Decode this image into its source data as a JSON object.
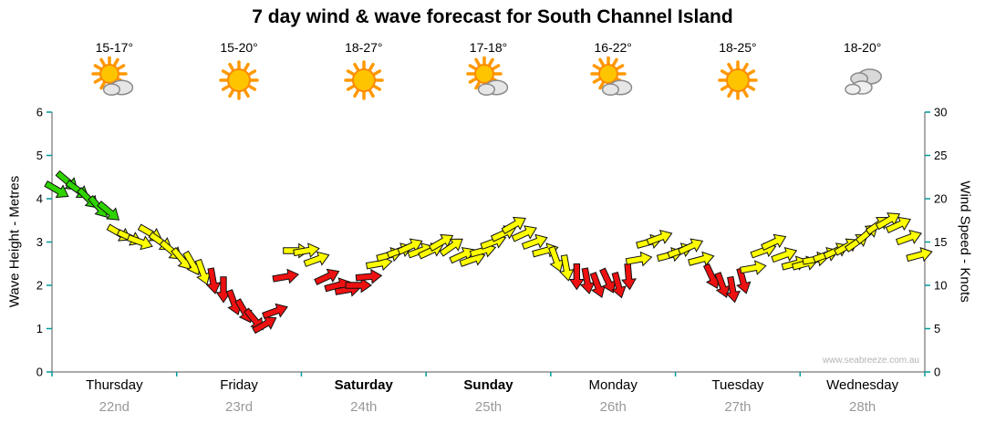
{
  "title": "7 day wind & wave forecast for South Channel Island",
  "watermark": "www.seabreeze.com.au",
  "axes": {
    "left": {
      "label": "Wave Height - Metres",
      "ticks": [
        0,
        1,
        2,
        3,
        4,
        5,
        6
      ],
      "range": [
        0,
        6
      ]
    },
    "right": {
      "label": "Wind Speed - Knots",
      "ticks": [
        0,
        5,
        10,
        15,
        20,
        25,
        30
      ],
      "range": [
        0,
        30
      ]
    }
  },
  "days": [
    {
      "name": "Thursday",
      "date": "22nd",
      "temp_range": "15-17°",
      "icon": "partly-cloudy",
      "weekend": false
    },
    {
      "name": "Friday",
      "date": "23rd",
      "temp_range": "15-20°",
      "icon": "sunny",
      "weekend": false
    },
    {
      "name": "Saturday",
      "date": "24th",
      "temp_range": "18-27°",
      "icon": "sunny",
      "weekend": true
    },
    {
      "name": "Sunday",
      "date": "25th",
      "temp_range": "17-18°",
      "icon": "partly-cloudy",
      "weekend": true
    },
    {
      "name": "Monday",
      "date": "26th",
      "temp_range": "16-22°",
      "icon": "partly-cloudy",
      "weekend": false
    },
    {
      "name": "Tuesday",
      "date": "27th",
      "temp_range": "18-25°",
      "icon": "sunny",
      "weekend": false
    },
    {
      "name": "Wednesday",
      "date": "28th",
      "temp_range": "18-20°",
      "icon": "cloudy",
      "weekend": false
    }
  ],
  "chart_data": {
    "type": "scatter",
    "title": "7 day wind & wave forecast for South Channel Island",
    "categories": [
      "Thursday 22nd",
      "Friday 23rd",
      "Saturday 24th",
      "Sunday 25th",
      "Monday 26th",
      "Tuesday 27th",
      "Wednesday 28th"
    ],
    "ylabel_left": "Wave Height - Metres",
    "ylabel_right": "Wind Speed - Knots",
    "ylim_left": [
      0,
      6
    ],
    "ylim_right": [
      0,
      30
    ],
    "points_per_day": 12,
    "grid": false,
    "legend": "none",
    "colors": {
      "strong": "#2fd400",
      "moderate": "#ffff00",
      "light": "#ee1111"
    },
    "color_thresholds_knots": {
      "strong_min": 18,
      "moderate_min": 11.5
    },
    "series": [
      {
        "name": "Wind Speed (knots, arrows show direction)",
        "unit": "knots",
        "values": [
          21,
          22,
          21,
          20,
          19,
          18.5,
          16,
          15.5,
          15,
          16,
          15,
          14,
          13,
          12.5,
          11.5,
          10.5,
          9.5,
          8,
          7,
          6,
          5.5,
          7,
          11,
          14,
          14,
          13,
          11,
          10,
          9.5,
          10,
          11,
          12.5,
          13.5,
          14,
          14.5,
          14,
          14,
          15,
          14.5,
          13.5,
          13,
          14,
          15,
          16,
          17,
          16,
          15,
          14,
          13,
          12,
          11,
          10.5,
          10,
          10.5,
          10,
          11,
          13,
          15,
          15.5,
          13.5,
          14,
          14.5,
          13,
          11,
          10,
          9.5,
          10.5,
          12,
          14,
          15,
          13.5,
          12.5,
          12.5,
          13,
          13.5,
          14,
          14.5,
          15,
          16,
          17,
          17.5,
          17,
          15.5,
          13.5
        ],
        "directions_deg": [
          120,
          130,
          125,
          135,
          140,
          130,
          120,
          115,
          110,
          120,
          125,
          130,
          140,
          150,
          160,
          170,
          180,
          160,
          150,
          140,
          60,
          70,
          80,
          90,
          80,
          70,
          65,
          75,
          80,
          90,
          85,
          80,
          75,
          70,
          65,
          70,
          65,
          60,
          55,
          65,
          70,
          75,
          70,
          65,
          60,
          65,
          70,
          75,
          160,
          170,
          180,
          170,
          160,
          155,
          165,
          175,
          80,
          75,
          70,
          75,
          70,
          65,
          75,
          155,
          160,
          170,
          165,
          80,
          70,
          65,
          70,
          75,
          75,
          80,
          70,
          65,
          60,
          55,
          50,
          55,
          60,
          65,
          70,
          75
        ]
      }
    ]
  }
}
